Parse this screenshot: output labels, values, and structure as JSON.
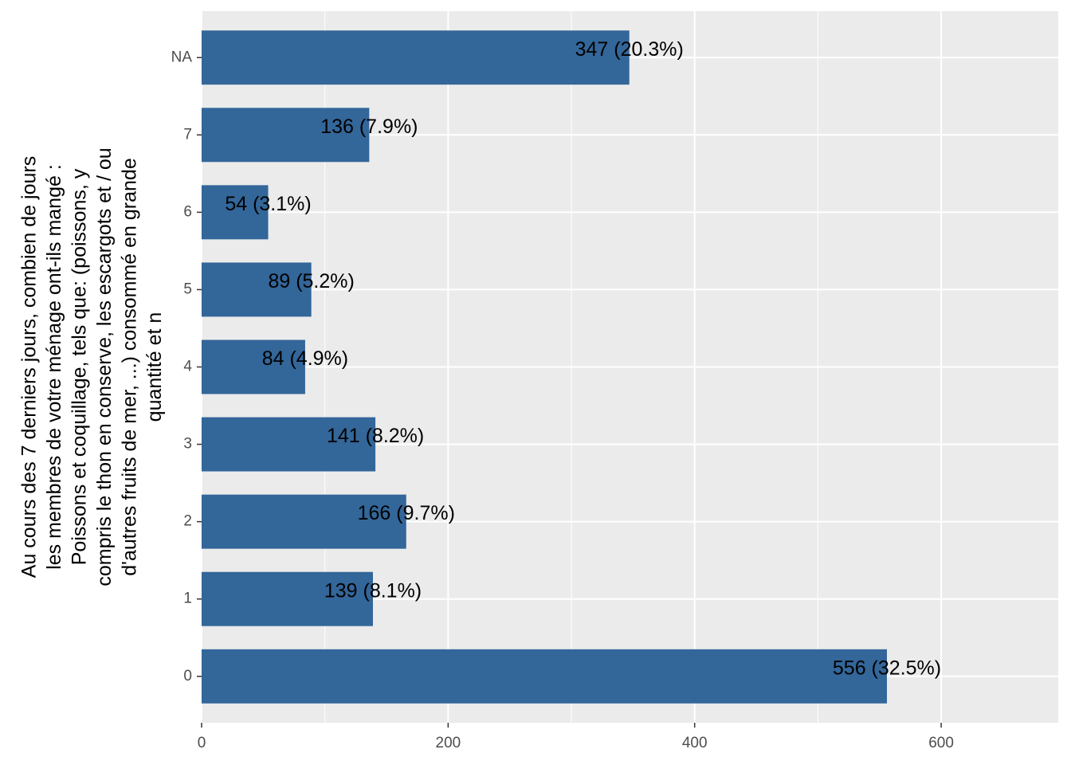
{
  "chart_data": {
    "type": "bar",
    "orientation": "horizontal",
    "categories": [
      "0",
      "1",
      "2",
      "3",
      "4",
      "5",
      "6",
      "7",
      "NA"
    ],
    "values": [
      556,
      139,
      166,
      141,
      84,
      89,
      54,
      136,
      347
    ],
    "data_labels": [
      "556 (32.5%)",
      "139 (8.1%)",
      "166 (9.7%)",
      "141 (8.2%)",
      "84 (4.9%)",
      "89 (5.2%)",
      "54 (3.1%)",
      "136 (7.9%)",
      "347 (20.3%)"
    ],
    "xlabel": "",
    "ylabel_lines": [
      "Au cours des 7 derniers jours, combien de jours",
      "les membres de votre ménage ont-ils mangé :",
      "Poissons et coquillage, tels que: (poissons, y",
      "compris le thon en conserve, les escargots et / ou",
      "d'autres fruits de mer, ...) consommé en grande",
      "quantité et n"
    ],
    "xlim": [
      0,
      695
    ],
    "x_ticks": [
      0,
      200,
      400,
      600
    ],
    "x_tick_labels": [
      "0",
      "200",
      "400",
      "600"
    ],
    "grid": true,
    "bar_color": "#336699",
    "panel_background": "#ebebeb",
    "grid_color": "#ffffff"
  }
}
